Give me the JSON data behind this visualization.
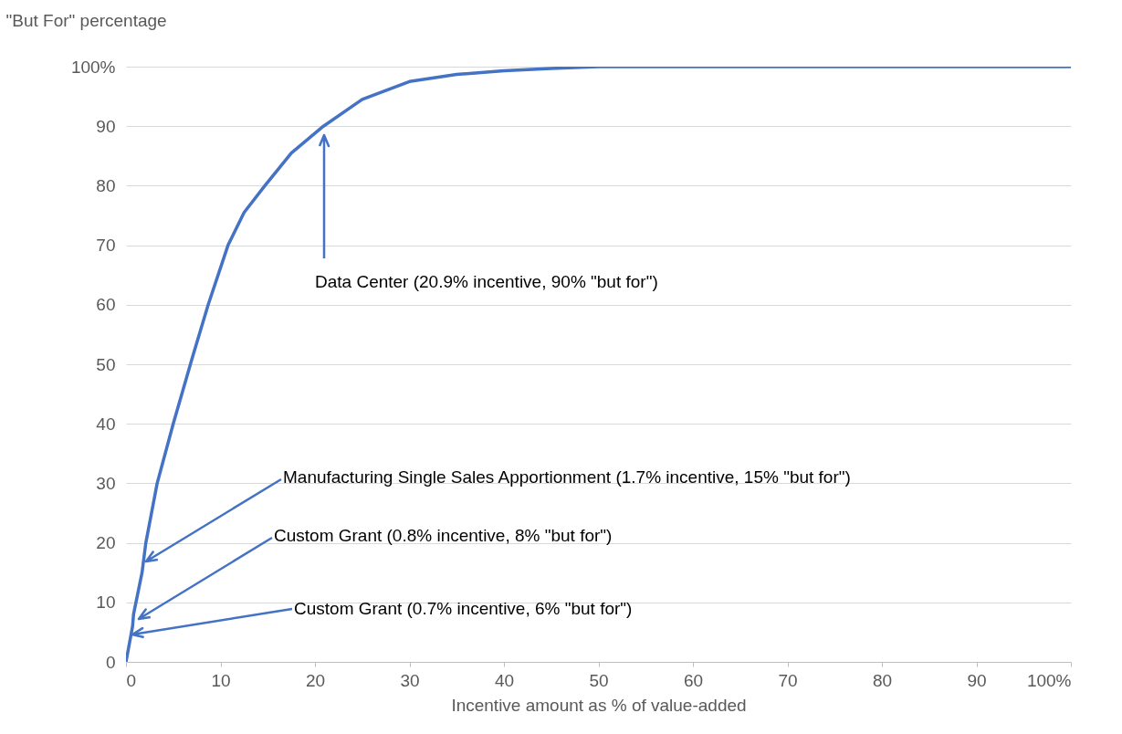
{
  "chart_data": {
    "type": "line",
    "xlabel": "Incentive amount as % of value-added",
    "ylabel": "\"But For\" percentage",
    "x": [
      0,
      0.7,
      0.8,
      1.7,
      2.1,
      3.3,
      5,
      7,
      8.7,
      10.8,
      12.5,
      14.7,
      17.5,
      20.9,
      25,
      30,
      35,
      40,
      45,
      50,
      100
    ],
    "series": [
      {
        "color": "#4472c4",
        "values": [
          0,
          6,
          8,
          15,
          20,
          30,
          40,
          51,
          60,
          70,
          75.5,
          80,
          85.5,
          90,
          94.5,
          97.5,
          98.7,
          99.3,
          99.7,
          100,
          100
        ]
      }
    ],
    "xlim": [
      0,
      100
    ],
    "xticks": [
      0,
      10,
      20,
      30,
      40,
      50,
      60,
      70,
      80,
      90,
      {
        "value": 100,
        "label": "100%"
      }
    ],
    "ylim": [
      0,
      100
    ],
    "yticks": [
      0,
      10,
      20,
      30,
      40,
      50,
      60,
      70,
      80,
      90,
      {
        "value": 100,
        "label": "100%"
      }
    ],
    "grid": "y",
    "annotations": [
      "Data Center (20.9% incentive, 90% \"but for\")",
      "Manufacturing Single Sales Apportionment (1.7% incentive, 15% \"but for\")",
      "Custom Grant (0.8% incentive, 8% \"but for\")",
      "Custom Grant (0.7% incentive, 6% \"but for\")"
    ]
  }
}
